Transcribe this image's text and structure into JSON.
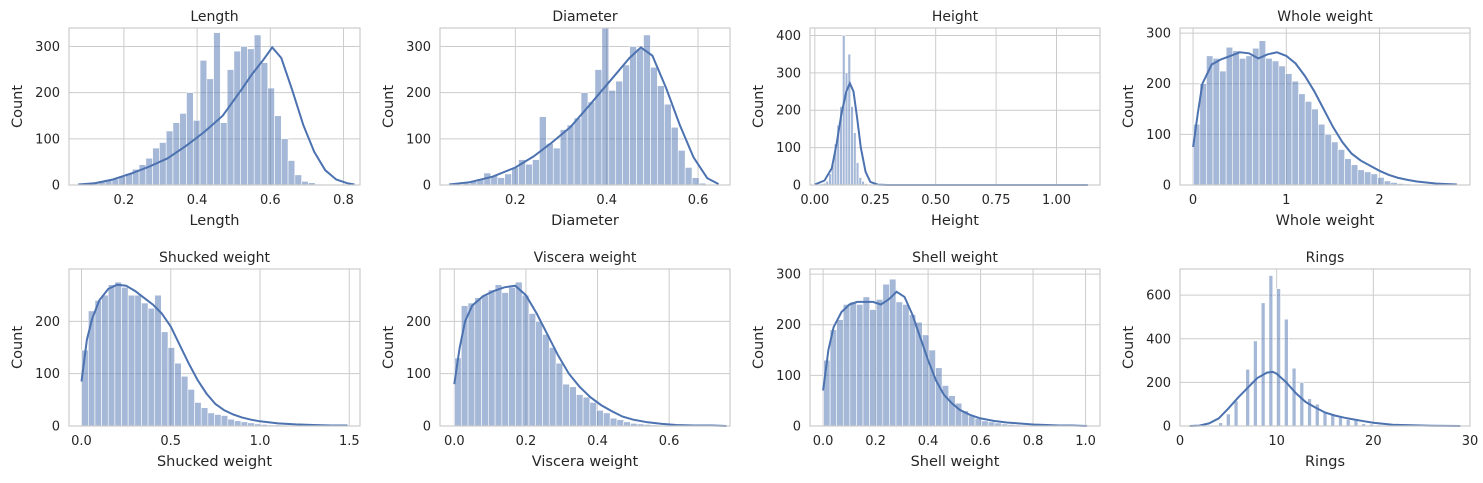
{
  "chart_data": [
    {
      "type": "bar",
      "title": "Length",
      "xlabel": "Length",
      "ylabel": "Count",
      "xlim": [
        0.05,
        0.845
      ],
      "ylim": [
        0,
        340
      ],
      "xticks": [
        "0.2",
        "0.4",
        "0.6",
        "0.8"
      ],
      "yticks": [
        "0",
        "100",
        "200",
        "300"
      ],
      "bins": {
        "start": 0.075,
        "width": 0.0185
      },
      "values": [
        1,
        2,
        5,
        8,
        11,
        13,
        18,
        25,
        34,
        44,
        58,
        80,
        92,
        117,
        135,
        155,
        200,
        140,
        270,
        230,
        330,
        135,
        250,
        290,
        300,
        295,
        325,
        265,
        210,
        150,
        100,
        53,
        22,
        8,
        5,
        2,
        1
      ],
      "kde": {
        "x": [
          0.075,
          0.12,
          0.17,
          0.22,
          0.27,
          0.32,
          0.37,
          0.42,
          0.47,
          0.52,
          0.55,
          0.58,
          0.605,
          0.63,
          0.66,
          0.69,
          0.72,
          0.75,
          0.78,
          0.81,
          0.83
        ],
        "y": [
          1,
          4,
          12,
          25,
          40,
          58,
          85,
          115,
          150,
          205,
          240,
          270,
          298,
          275,
          205,
          130,
          72,
          32,
          12,
          4,
          1
        ]
      }
    },
    {
      "type": "bar",
      "title": "Diameter",
      "xlabel": "Diameter",
      "ylabel": "Count",
      "xlim": [
        0.035,
        0.67
      ],
      "ylim": [
        0,
        340
      ],
      "xticks": [
        "0.2",
        "0.4",
        "0.6"
      ],
      "yticks": [
        "0",
        "100",
        "200",
        "300"
      ],
      "bins": {
        "start": 0.055,
        "width": 0.0152
      },
      "values": [
        1,
        2,
        4,
        8,
        13,
        26,
        20,
        16,
        24,
        38,
        55,
        45,
        55,
        148,
        90,
        80,
        120,
        130,
        145,
        200,
        180,
        250,
        345,
        205,
        225,
        260,
        300,
        295,
        325,
        255,
        215,
        175,
        125,
        75,
        38,
        16,
        4,
        1
      ],
      "kde": {
        "x": [
          0.055,
          0.1,
          0.15,
          0.2,
          0.24,
          0.28,
          0.32,
          0.36,
          0.39,
          0.42,
          0.45,
          0.475,
          0.5,
          0.53,
          0.56,
          0.59,
          0.62,
          0.645
        ],
        "y": [
          1,
          6,
          18,
          38,
          62,
          92,
          125,
          170,
          205,
          240,
          275,
          298,
          280,
          210,
          130,
          60,
          15,
          2
        ]
      }
    },
    {
      "type": "bar",
      "title": "Height",
      "xlabel": "Height",
      "ylabel": "Count",
      "xlim": [
        -0.02,
        1.18
      ],
      "ylim": [
        0,
        420
      ],
      "xticks": [
        "0.00",
        "0.25",
        "0.50",
        "0.75",
        "1.00"
      ],
      "yticks": [
        "0",
        "100",
        "200",
        "300",
        "400"
      ],
      "bins": {
        "start": 0.0,
        "width": 0.0114
      },
      "values": [
        1,
        2,
        3,
        5,
        10,
        30,
        55,
        110,
        160,
        210,
        400,
        300,
        350,
        210,
        140,
        60,
        20,
        10,
        4,
        2,
        1,
        1
      ],
      "kde": {
        "x": [
          0.0,
          0.04,
          0.07,
          0.09,
          0.11,
          0.13,
          0.145,
          0.16,
          0.175,
          0.19,
          0.21,
          0.23,
          0.26,
          0.3,
          1.13
        ],
        "y": [
          1,
          12,
          45,
          110,
          190,
          250,
          272,
          250,
          180,
          100,
          35,
          8,
          1,
          0,
          0
        ]
      }
    },
    {
      "type": "bar",
      "title": "Whole weight",
      "xlabel": "Whole weight",
      "ylabel": "Count",
      "xlim": [
        -0.14,
        2.97
      ],
      "ylim": [
        0,
        310
      ],
      "xticks": [
        "0",
        "1",
        "2"
      ],
      "yticks": [
        "0",
        "100",
        "200",
        "300"
      ],
      "bins": {
        "start": 0.002,
        "width": 0.0706
      },
      "values": [
        120,
        200,
        255,
        250,
        225,
        272,
        265,
        250,
        255,
        270,
        285,
        250,
        245,
        235,
        220,
        205,
        180,
        165,
        150,
        120,
        100,
        85,
        70,
        52,
        40,
        30,
        26,
        22,
        15,
        8,
        5,
        3,
        2,
        1,
        1,
        1,
        1,
        1,
        1,
        1
      ],
      "kde": {
        "x": [
          0.0,
          0.05,
          0.1,
          0.2,
          0.3,
          0.4,
          0.5,
          0.6,
          0.7,
          0.8,
          0.9,
          1.0,
          1.1,
          1.2,
          1.3,
          1.4,
          1.5,
          1.6,
          1.7,
          1.8,
          1.9,
          2.0,
          2.1,
          2.2,
          2.3,
          2.4,
          2.5,
          2.6,
          2.7,
          2.83
        ],
        "y": [
          75,
          140,
          200,
          238,
          248,
          255,
          262,
          260,
          250,
          258,
          262,
          255,
          240,
          215,
          185,
          150,
          115,
          85,
          62,
          48,
          38,
          28,
          20,
          14,
          10,
          7,
          5,
          3,
          2,
          1
        ]
      }
    },
    {
      "type": "bar",
      "title": "Shucked weight",
      "xlabel": "Shucked weight",
      "ylabel": "Count",
      "xlim": [
        -0.07,
        1.56
      ],
      "ylim": [
        0,
        300
      ],
      "xticks": [
        "0.0",
        "0.5",
        "1.0",
        "1.5"
      ],
      "yticks": [
        "0",
        "100",
        "200"
      ],
      "bins": {
        "start": 0.001,
        "width": 0.0372
      },
      "values": [
        145,
        220,
        240,
        250,
        270,
        275,
        265,
        250,
        250,
        235,
        225,
        250,
        180,
        150,
        120,
        95,
        70,
        45,
        35,
        25,
        22,
        20,
        13,
        10,
        8,
        6,
        4,
        3,
        2,
        2,
        1,
        1,
        1,
        1,
        1,
        1,
        1,
        1,
        1,
        1
      ],
      "kde": {
        "x": [
          0.0,
          0.03,
          0.06,
          0.1,
          0.15,
          0.2,
          0.25,
          0.3,
          0.35,
          0.4,
          0.45,
          0.5,
          0.55,
          0.6,
          0.65,
          0.7,
          0.75,
          0.8,
          0.85,
          0.9,
          0.95,
          1.0,
          1.1,
          1.2,
          1.3,
          1.4,
          1.49
        ],
        "y": [
          85,
          165,
          205,
          240,
          262,
          270,
          268,
          258,
          245,
          232,
          215,
          190,
          155,
          120,
          88,
          62,
          42,
          30,
          22,
          16,
          12,
          9,
          5,
          3,
          2,
          1,
          1
        ]
      }
    },
    {
      "type": "bar",
      "title": "Viscera weight",
      "xlabel": "Viscera weight",
      "ylabel": "Count",
      "xlim": [
        -0.04,
        0.77
      ],
      "ylim": [
        0,
        300
      ],
      "xticks": [
        "0.0",
        "0.2",
        "0.4",
        "0.6"
      ],
      "yticks": [
        "0",
        "100",
        "200"
      ],
      "bins": {
        "start": 0.0005,
        "width": 0.0189
      },
      "values": [
        130,
        230,
        235,
        245,
        250,
        260,
        270,
        255,
        265,
        275,
        250,
        215,
        200,
        175,
        150,
        120,
        80,
        75,
        60,
        55,
        45,
        30,
        25,
        15,
        12,
        8,
        5,
        4,
        3,
        2,
        1,
        1,
        1,
        1,
        1,
        1,
        1,
        1,
        1,
        1
      ],
      "kde": {
        "x": [
          0.0,
          0.015,
          0.03,
          0.05,
          0.08,
          0.11,
          0.14,
          0.17,
          0.2,
          0.23,
          0.26,
          0.29,
          0.32,
          0.35,
          0.38,
          0.41,
          0.44,
          0.47,
          0.5,
          0.54,
          0.58,
          0.62,
          0.67,
          0.72,
          0.76
        ],
        "y": [
          80,
          150,
          200,
          230,
          248,
          258,
          265,
          268,
          250,
          215,
          175,
          135,
          100,
          75,
          55,
          40,
          28,
          18,
          12,
          7,
          4,
          2,
          1,
          1,
          0
        ]
      }
    },
    {
      "type": "bar",
      "title": "Shell weight",
      "xlabel": "Shell weight",
      "ylabel": "Count",
      "xlim": [
        -0.05,
        1.055
      ],
      "ylim": [
        0,
        310
      ],
      "xticks": [
        "0.0",
        "0.2",
        "0.4",
        "0.6",
        "0.8",
        "1.0"
      ],
      "yticks": [
        "0",
        "100",
        "200",
        "300"
      ],
      "bins": {
        "start": 0.0015,
        "width": 0.0251
      },
      "values": [
        130,
        190,
        210,
        240,
        245,
        240,
        255,
        230,
        250,
        280,
        290,
        245,
        240,
        220,
        205,
        180,
        150,
        115,
        80,
        60,
        45,
        30,
        20,
        15,
        10,
        8,
        6,
        4,
        3,
        2,
        1,
        1,
        1,
        1,
        1,
        1,
        1,
        1,
        1,
        1
      ],
      "kde": {
        "x": [
          0.0,
          0.02,
          0.04,
          0.07,
          0.1,
          0.13,
          0.16,
          0.19,
          0.22,
          0.25,
          0.28,
          0.31,
          0.34,
          0.37,
          0.4,
          0.43,
          0.46,
          0.49,
          0.52,
          0.56,
          0.6,
          0.65,
          0.7,
          0.75,
          0.8,
          0.85,
          0.9,
          0.95,
          1.005
        ],
        "y": [
          70,
          150,
          195,
          225,
          240,
          245,
          245,
          245,
          240,
          250,
          265,
          255,
          220,
          175,
          130,
          90,
          62,
          45,
          32,
          22,
          15,
          10,
          7,
          5,
          3,
          2,
          1,
          1,
          0
        ]
      }
    },
    {
      "type": "bar",
      "title": "Rings",
      "xlabel": "Rings",
      "ylabel": "Count",
      "xlim": [
        0,
        30
      ],
      "ylim": [
        0,
        720
      ],
      "xticks": [
        "0",
        "10",
        "20",
        "30"
      ],
      "yticks": [
        "0",
        "200",
        "400",
        "600"
      ],
      "bins": {
        "start": 1.6,
        "width": 0.4
      },
      "values": [
        1,
        0,
        0,
        0,
        0,
        0,
        15,
        0,
        55,
        0,
        115,
        0,
        0,
        260,
        0,
        390,
        0,
        565,
        0,
        690,
        0,
        630,
        0,
        490,
        0,
        265,
        0,
        200,
        0,
        125,
        0,
        100,
        0,
        65,
        0,
        55,
        0,
        40,
        0,
        30,
        0,
        25,
        0,
        10,
        0,
        8,
        0,
        5,
        0,
        3,
        0,
        2,
        0,
        2,
        0,
        1,
        0,
        1,
        0,
        1,
        0,
        1
      ],
      "kde": {
        "x": [
          1,
          2,
          3,
          4,
          5,
          6,
          7,
          8,
          9,
          9.6,
          10,
          11,
          12,
          13,
          14,
          15,
          16,
          17,
          18,
          19,
          20,
          21,
          22,
          24,
          26,
          29
        ],
        "y": [
          0,
          2,
          12,
          35,
          80,
          130,
          175,
          220,
          245,
          248,
          240,
          200,
          150,
          110,
          85,
          62,
          48,
          38,
          30,
          22,
          15,
          10,
          6,
          3,
          1,
          0
        ]
      }
    }
  ]
}
